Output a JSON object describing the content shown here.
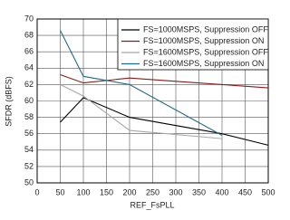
{
  "chart_data": {
    "type": "line",
    "xlabel": "REF_FsPLL",
    "ylabel": "SFDR (dBFS)",
    "x": [
      50,
      100,
      200,
      400,
      500
    ],
    "series": [
      {
        "name": "FS=1000MSPS, Suppression OFF",
        "color": "#000000",
        "values": [
          57.4,
          60.4,
          58.0,
          56.0,
          54.6
        ]
      },
      {
        "name": "FS=1000MSPS, Suppression ON",
        "color": "#8b1a1a",
        "values": [
          63.2,
          62.2,
          62.8,
          62.0,
          61.6
        ]
      },
      {
        "name": "FS=1600MSPS, Suppression OFF",
        "color": "#a8a8a8",
        "values": [
          62.0,
          60.6,
          56.4,
          55.4,
          null
        ]
      },
      {
        "name": "FS=1600MSPS, Suppression ON",
        "color": "#1f6b8a",
        "values": [
          68.6,
          63.0,
          62.0,
          55.8,
          null
        ]
      }
    ],
    "xlim": [
      0,
      500
    ],
    "xticks": [
      0,
      50,
      100,
      150,
      200,
      250,
      300,
      350,
      400,
      450,
      500
    ],
    "ylim": [
      50,
      70
    ],
    "yticks": [
      50,
      52,
      54,
      56,
      58,
      60,
      62,
      64,
      66,
      68,
      70
    ],
    "grid": true,
    "legend": "upper right"
  }
}
